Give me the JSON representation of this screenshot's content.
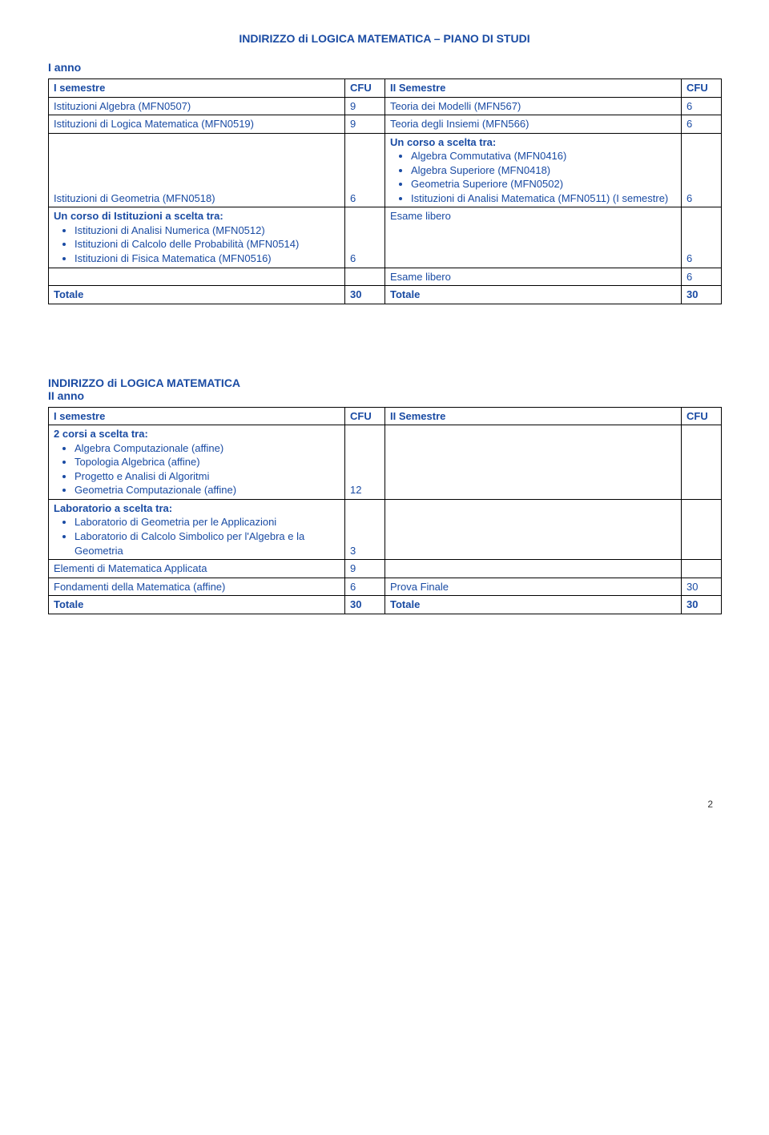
{
  "colors": {
    "text": "#1a4ba3",
    "border": "#000000",
    "background": "#ffffff"
  },
  "title": "INDIRIZZO di LOGICA MATEMATICA – PIANO DI STUDI",
  "year1_label": "I anno",
  "table1": {
    "h1": "I semestre",
    "h2": "CFU",
    "h3": "II Semestre",
    "h4": "CFU",
    "r1c1": "Istituzioni Algebra (MFN0507)",
    "r1c2": "9",
    "r1c3": "Teoria dei Modelli (MFN567)",
    "r1c4": "6",
    "r2c1": "Istituzioni di Logica Matematica (MFN0519)",
    "r2c2": "9",
    "r2c3": "Teoria degli Insiemi (MFN566)",
    "r2c4": "6",
    "r3c1": "Istituzioni di Geometria (MFN0518)",
    "r3c2": "6",
    "r3c3_lead": "Un corso a scelta tra:",
    "r3c3_b1": "Algebra Commutativa (MFN0416)",
    "r3c3_b2": "Algebra Superiore (MFN0418)",
    "r3c3_b3": "Geometria Superiore (MFN0502)",
    "r3c3_b4": "Istituzioni di Analisi Matematica (MFN0511) (I semestre)",
    "r3c4": "6",
    "r4c1_lead": "Un corso di Istituzioni a  scelta tra:",
    "r4c1_b1": "Istituzioni di Analisi Numerica (MFN0512)",
    "r4c1_b2": "Istituzioni di Calcolo delle Probabilità (MFN0514)",
    "r4c1_b3": "Istituzioni di Fisica Matematica (MFN0516)",
    "r4c2": "6",
    "r4c3": "Esame libero",
    "r4c4": "6",
    "r5c3": "Esame libero",
    "r5c4": "6",
    "r6c1": "Totale",
    "r6c2": "30",
    "r6c3": "Totale",
    "r6c4": "30"
  },
  "section2_title": "INDIRIZZO di LOGICA MATEMATICA",
  "year2_label": "II anno",
  "table2": {
    "h1": "I semestre",
    "h2": "CFU",
    "h3": "II Semestre",
    "h4": "CFU",
    "r1c1_lead": "2 corsi a scelta tra:",
    "r1c1_b1": "Algebra Computazionale (affine)",
    "r1c1_b2": "Topologia Algebrica (affine)",
    "r1c1_b3": "Progetto e Analisi di Algoritmi",
    "r1c1_b4": "Geometria Computazionale (affine)",
    "r1c2": "12",
    "r2c1_lead": "Laboratorio  a scelta tra:",
    "r2c1_b1": "Laboratorio di Geometria per le Applicazioni",
    "r2c1_b2": "Laboratorio di Calcolo Simbolico per l'Algebra e la Geometria",
    "r2c2": "3",
    "r3c1": "Elementi di Matematica Applicata",
    "r3c2": "9",
    "r4c1": "Fondamenti della Matematica (affine)",
    "r4c2": "6",
    "r4c3": "Prova Finale",
    "r4c4": "30",
    "r5c1": "Totale",
    "r5c2": "30",
    "r5c3": "Totale",
    "r5c4": "30"
  },
  "page_number": "2"
}
